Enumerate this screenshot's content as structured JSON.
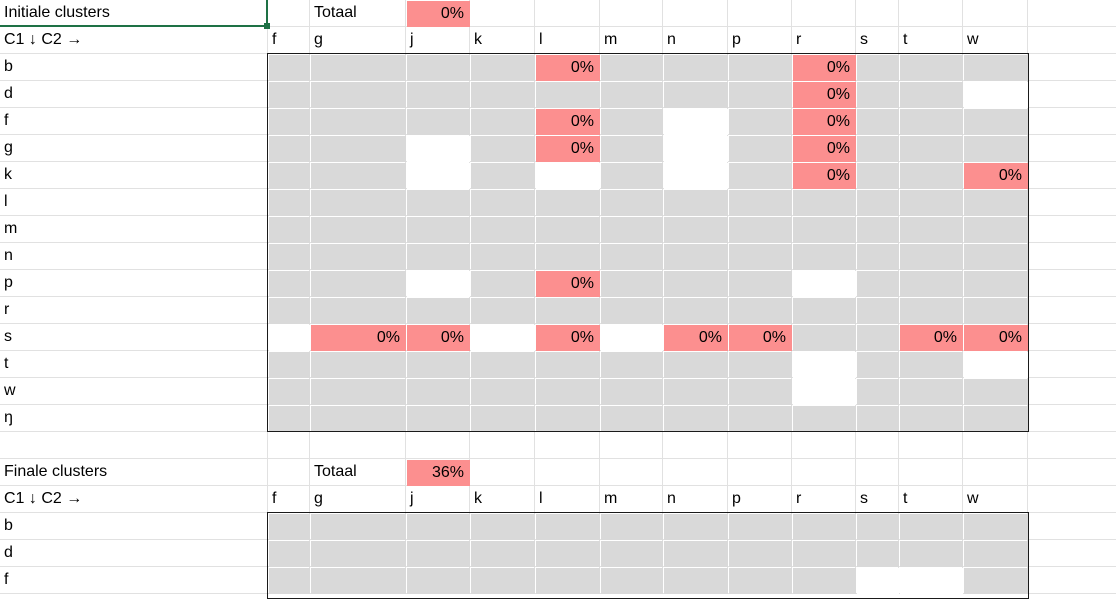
{
  "colors": {
    "grid": "#e1e1e1",
    "gray_fill": "#d9d9d9",
    "white_fill": "#ffffff",
    "pink_fill": "#fc8f8f",
    "selection": "#1e7145"
  },
  "c1_rows_initial": [
    "b",
    "d",
    "f",
    "g",
    "k",
    "l",
    "m",
    "n",
    "p",
    "r",
    "s",
    "t",
    "w",
    "ŋ"
  ],
  "c2_cols": [
    "f",
    "g",
    "j",
    "k",
    "l",
    "m",
    "n",
    "p",
    "r",
    "s",
    "t",
    "w"
  ],
  "initial": {
    "title": "Initiale clusters",
    "total_label": "Totaal",
    "total_value": "0%",
    "header": "C1 ↓ C2 →",
    "rows": [
      {
        "fills": [
          "g",
          "g",
          "g",
          "g",
          "p",
          "g",
          "g",
          "g",
          "p",
          "g",
          "g",
          "g"
        ],
        "vals": [
          "",
          "",
          "",
          "",
          "0%",
          "",
          "",
          "",
          "0%",
          "",
          "",
          ""
        ]
      },
      {
        "fills": [
          "g",
          "g",
          "g",
          "g",
          "g",
          "g",
          "g",
          "g",
          "p",
          "g",
          "g",
          "w"
        ],
        "vals": [
          "",
          "",
          "",
          "",
          "",
          "",
          "",
          "",
          "0%",
          "",
          "",
          ""
        ]
      },
      {
        "fills": [
          "g",
          "g",
          "g",
          "g",
          "p",
          "g",
          "w",
          "g",
          "p",
          "g",
          "g",
          "g"
        ],
        "vals": [
          "",
          "",
          "",
          "",
          "0%",
          "",
          "",
          "",
          "0%",
          "",
          "",
          ""
        ]
      },
      {
        "fills": [
          "g",
          "g",
          "w",
          "g",
          "p",
          "g",
          "w",
          "g",
          "p",
          "g",
          "g",
          "g"
        ],
        "vals": [
          "",
          "",
          "",
          "",
          "0%",
          "",
          "",
          "",
          "0%",
          "",
          "",
          ""
        ]
      },
      {
        "fills": [
          "g",
          "g",
          "w",
          "g",
          "w",
          "g",
          "w",
          "g",
          "p",
          "g",
          "g",
          "p"
        ],
        "vals": [
          "",
          "",
          "",
          "",
          "",
          "",
          "",
          "",
          "0%",
          "",
          "",
          "0%"
        ]
      },
      {
        "fills": [
          "g",
          "g",
          "g",
          "g",
          "g",
          "g",
          "g",
          "g",
          "g",
          "g",
          "g",
          "g"
        ],
        "vals": [
          "",
          "",
          "",
          "",
          "",
          "",
          "",
          "",
          "",
          "",
          "",
          ""
        ]
      },
      {
        "fills": [
          "g",
          "g",
          "g",
          "g",
          "g",
          "g",
          "g",
          "g",
          "g",
          "g",
          "g",
          "g"
        ],
        "vals": [
          "",
          "",
          "",
          "",
          "",
          "",
          "",
          "",
          "",
          "",
          "",
          ""
        ]
      },
      {
        "fills": [
          "g",
          "g",
          "g",
          "g",
          "g",
          "g",
          "g",
          "g",
          "g",
          "g",
          "g",
          "g"
        ],
        "vals": [
          "",
          "",
          "",
          "",
          "",
          "",
          "",
          "",
          "",
          "",
          "",
          ""
        ]
      },
      {
        "fills": [
          "g",
          "g",
          "w",
          "g",
          "p",
          "g",
          "g",
          "g",
          "w",
          "g",
          "g",
          "g"
        ],
        "vals": [
          "",
          "",
          "",
          "",
          "0%",
          "",
          "",
          "",
          "",
          "",
          "",
          ""
        ]
      },
      {
        "fills": [
          "g",
          "g",
          "g",
          "g",
          "g",
          "g",
          "g",
          "g",
          "g",
          "g",
          "g",
          "g"
        ],
        "vals": [
          "",
          "",
          "",
          "",
          "",
          "",
          "",
          "",
          "",
          "",
          "",
          ""
        ]
      },
      {
        "fills": [
          "w",
          "p",
          "p",
          "w",
          "p",
          "w",
          "p",
          "p",
          "g",
          "g",
          "p",
          "p"
        ],
        "vals": [
          "",
          "0%",
          "0%",
          "",
          "0%",
          "",
          "0%",
          "0%",
          "",
          "",
          "0%",
          "0%"
        ]
      },
      {
        "fills": [
          "g",
          "g",
          "g",
          "g",
          "g",
          "g",
          "g",
          "g",
          "w",
          "g",
          "g",
          "w"
        ],
        "vals": [
          "",
          "",
          "",
          "",
          "",
          "",
          "",
          "",
          "",
          "",
          "",
          ""
        ]
      },
      {
        "fills": [
          "g",
          "g",
          "g",
          "g",
          "g",
          "g",
          "g",
          "g",
          "w",
          "g",
          "g",
          "g"
        ],
        "vals": [
          "",
          "",
          "",
          "",
          "",
          "",
          "",
          "",
          "",
          "",
          "",
          ""
        ]
      },
      {
        "fills": [
          "g",
          "g",
          "g",
          "g",
          "g",
          "g",
          "g",
          "g",
          "g",
          "g",
          "g",
          "g"
        ],
        "vals": [
          "",
          "",
          "",
          "",
          "",
          "",
          "",
          "",
          "",
          "",
          "",
          ""
        ]
      }
    ]
  },
  "final": {
    "title": "Finale clusters",
    "total_label": "Totaal",
    "total_value": "36%",
    "header": "C1 ↓ C2 →",
    "row_labels": [
      "b",
      "d",
      "f"
    ],
    "rows": [
      {
        "fills": [
          "g",
          "g",
          "g",
          "g",
          "g",
          "g",
          "g",
          "g",
          "g",
          "g",
          "g",
          "g"
        ],
        "vals": [
          "",
          "",
          "",
          "",
          "",
          "",
          "",
          "",
          "",
          "",
          "",
          ""
        ]
      },
      {
        "fills": [
          "g",
          "g",
          "g",
          "g",
          "g",
          "g",
          "g",
          "g",
          "g",
          "g",
          "g",
          "g"
        ],
        "vals": [
          "",
          "",
          "",
          "",
          "",
          "",
          "",
          "",
          "",
          "",
          "",
          ""
        ]
      },
      {
        "fills": [
          "g",
          "g",
          "g",
          "g",
          "g",
          "g",
          "g",
          "g",
          "g",
          "w",
          "w",
          "g"
        ],
        "vals": [
          "",
          "",
          "",
          "",
          "",
          "",
          "",
          "",
          "",
          "",
          "",
          ""
        ]
      }
    ]
  }
}
